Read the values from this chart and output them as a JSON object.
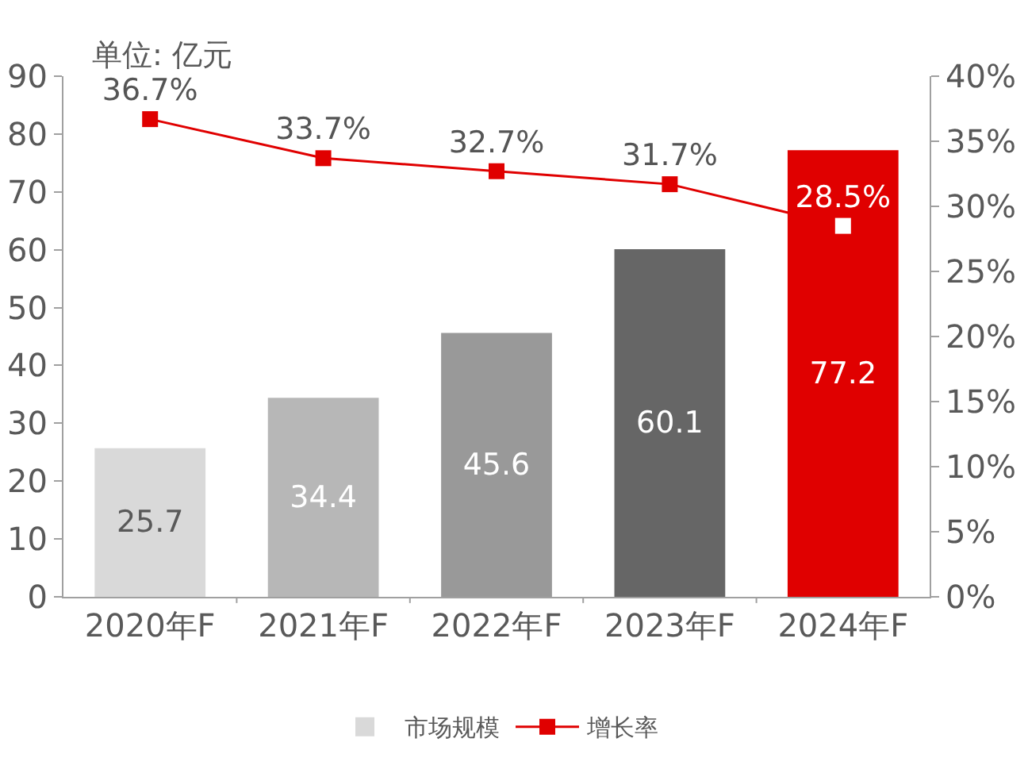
{
  "chart_data": {
    "type": "bar",
    "categories": [
      "2020年F",
      "2021年F",
      "2022年F",
      "2023年F",
      "2024年F"
    ],
    "series": [
      {
        "name": "市场规模",
        "colors": [
          "#d9d9d9",
          "#b7b7b7",
          "#999999",
          "#666666",
          "#e00000"
        ],
        "values": [
          25.7,
          34.4,
          45.6,
          60.1,
          77.2
        ],
        "value_labels": [
          "25.7",
          "34.4",
          "45.6",
          "60.1",
          "77.2"
        ]
      },
      {
        "name": "增长率",
        "type": "line",
        "axis": "y2",
        "color": "#e00000",
        "colors": [
          "#e00000",
          "#e00000",
          "#e00000",
          "#e00000",
          "#ffffff"
        ],
        "values": [
          36.7,
          33.7,
          32.7,
          31.7,
          28.5
        ],
        "value_labels": [
          "36.7%",
          "33.7%",
          "32.7%",
          "31.7%",
          "28.5%"
        ]
      }
    ],
    "ylim": [
      0,
      90
    ],
    "yticks": [
      0,
      10,
      20,
      30,
      40,
      50,
      60,
      70,
      80,
      90
    ],
    "y2lim": [
      0,
      40
    ],
    "y2ticks": [
      {
        "value": 0,
        "label": "0%"
      },
      {
        "value": 5,
        "label": "5%"
      },
      {
        "value": 10,
        "label": "10%"
      },
      {
        "value": 15,
        "label": "15%"
      },
      {
        "value": 20,
        "label": "20%"
      },
      {
        "value": 25,
        "label": "25%"
      },
      {
        "value": 30,
        "label": "30%"
      },
      {
        "value": 35,
        "label": "35%"
      },
      {
        "value": 40,
        "label": "40%"
      }
    ],
    "annotations": [
      "单位: 亿元"
    ],
    "marker": "square",
    "grid": false,
    "legend": "bottom"
  }
}
